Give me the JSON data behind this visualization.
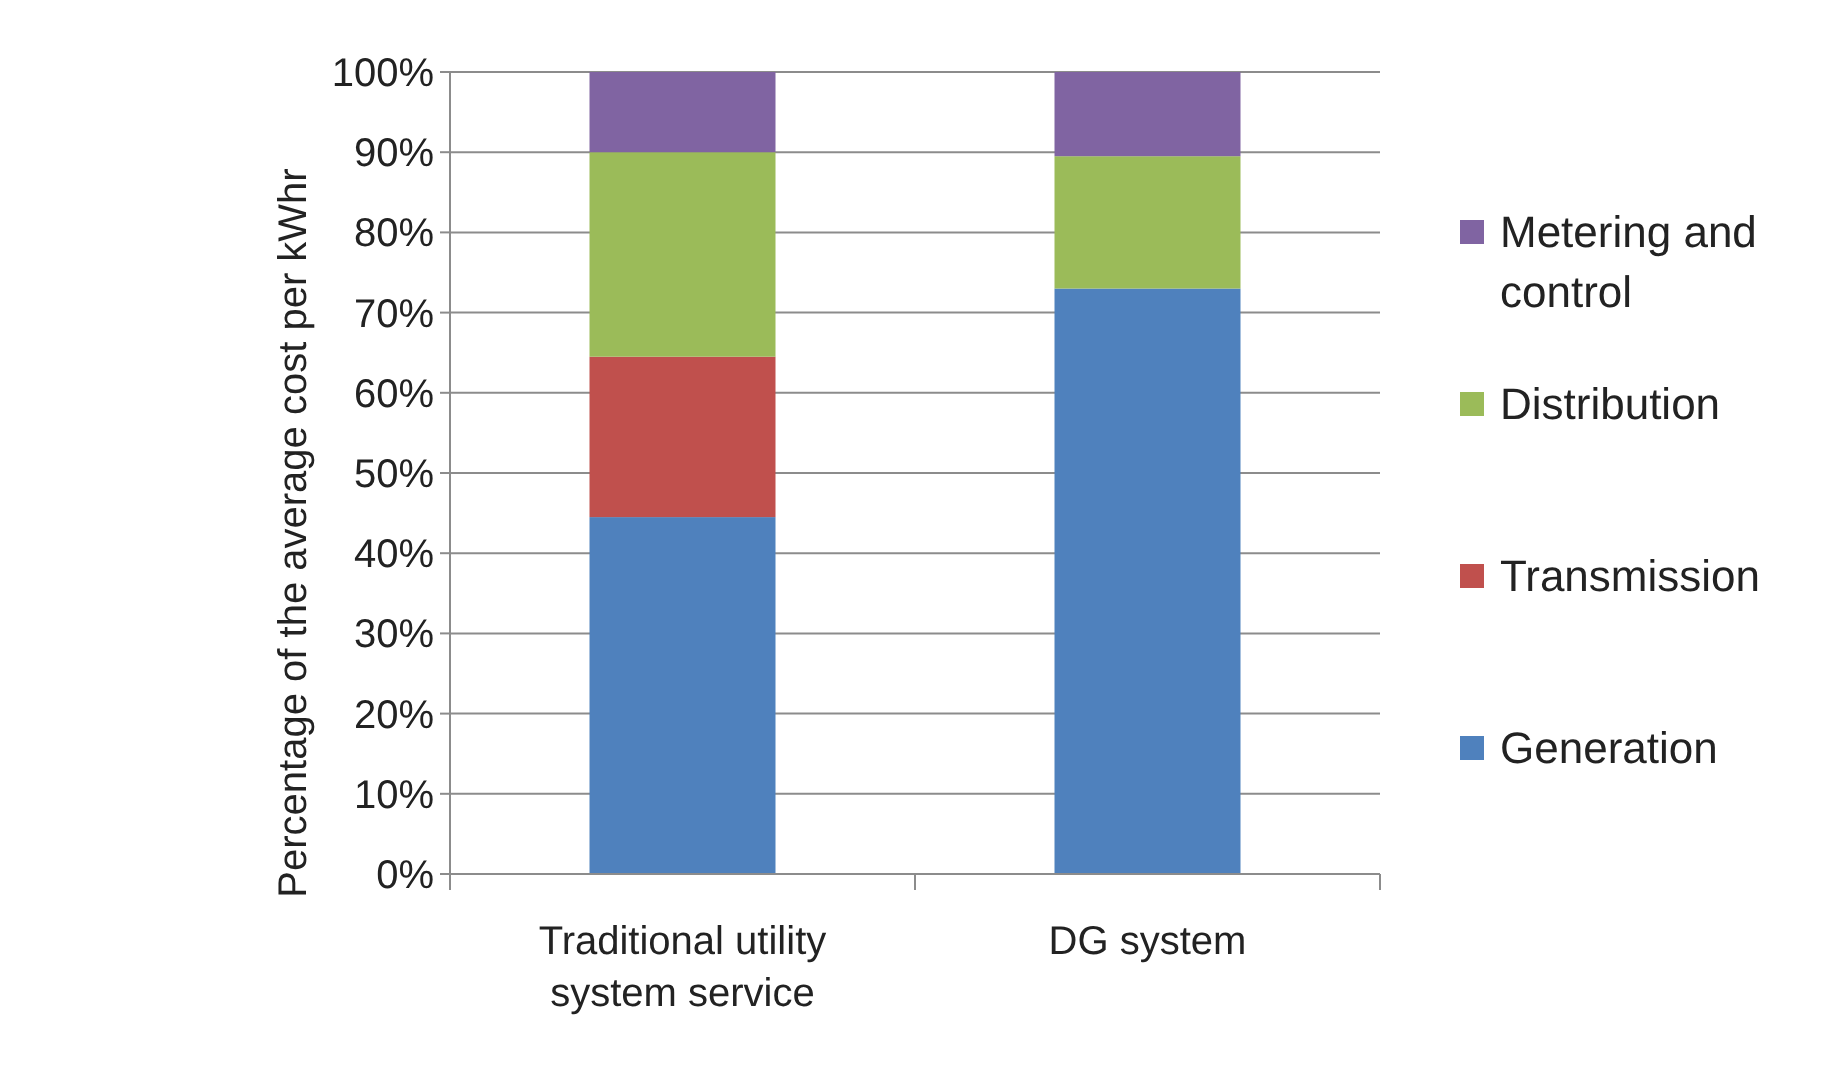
{
  "chart_data": {
    "type": "bar",
    "stacked": true,
    "ylabel": "Percentage of the average cost per kWhr",
    "categories": [
      "Traditional utility system service",
      "DG system"
    ],
    "series": [
      {
        "name": "Generation",
        "color": "#4f81bd",
        "values": [
          44.5,
          73
        ]
      },
      {
        "name": "Transmission",
        "color": "#c0504d",
        "values": [
          20,
          0
        ]
      },
      {
        "name": "Distribution",
        "color": "#9bbb59",
        "values": [
          25.5,
          16.5
        ]
      },
      {
        "name": "Metering and control",
        "color": "#8064a2",
        "values": [
          10,
          10.5
        ]
      }
    ],
    "ylim": [
      0,
      100
    ],
    "yticks": [
      {
        "value": 0,
        "label": "0%"
      },
      {
        "value": 10,
        "label": "10%"
      },
      {
        "value": 20,
        "label": "20%"
      },
      {
        "value": 30,
        "label": "30%"
      },
      {
        "value": 40,
        "label": "40%"
      },
      {
        "value": 50,
        "label": "50%"
      },
      {
        "value": 60,
        "label": "60%"
      },
      {
        "value": 70,
        "label": "70%"
      },
      {
        "value": 80,
        "label": "80%"
      },
      {
        "value": 90,
        "label": "90%"
      },
      {
        "value": 100,
        "label": "100%"
      }
    ],
    "grid": "y",
    "legend": "right"
  }
}
